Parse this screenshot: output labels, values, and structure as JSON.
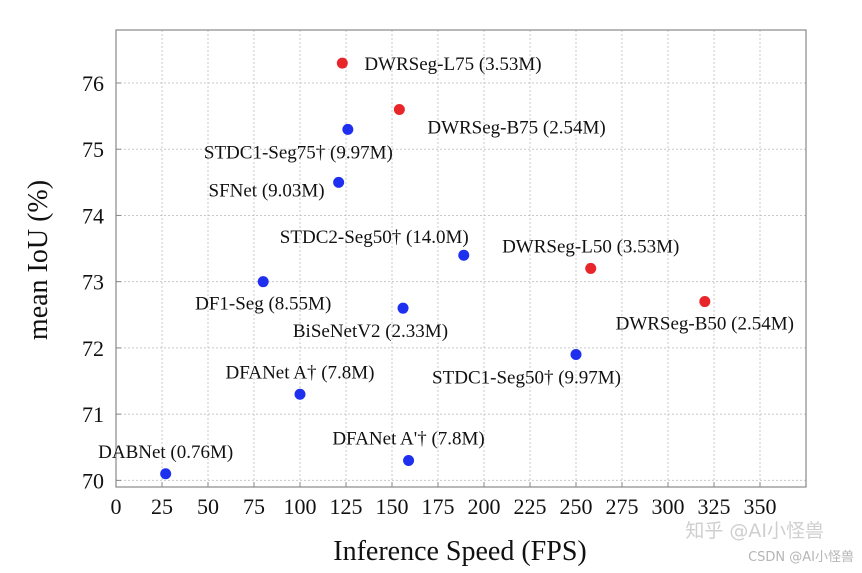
{
  "chart_data": {
    "type": "scatter",
    "title": "",
    "xlabel": "Inference Speed (FPS)",
    "ylabel": "mean IoU (%)",
    "xlim": [
      0,
      375
    ],
    "ylim": [
      69.9,
      76.8
    ],
    "xticks": [
      0,
      25,
      50,
      75,
      100,
      125,
      150,
      175,
      200,
      225,
      250,
      275,
      300,
      325,
      350
    ],
    "yticks": [
      70,
      71,
      72,
      73,
      74,
      75,
      76
    ],
    "grid": true,
    "colors": {
      "ours": "#e8262a",
      "others": "#1f2ff0"
    },
    "points": [
      {
        "label": "DWRSeg-L75 (3.53M)",
        "x": 123,
        "y": 76.3,
        "group": "ours",
        "anchor": "right"
      },
      {
        "label": "DWRSeg-B75 (2.54M)",
        "x": 154,
        "y": 75.6,
        "group": "ours",
        "anchor": "below-right"
      },
      {
        "label": "STDC1-Seg75† (9.97M)",
        "x": 126,
        "y": 75.3,
        "group": "others",
        "anchor": "below-left"
      },
      {
        "label": "SFNet (9.03M)",
        "x": 121,
        "y": 74.5,
        "group": "others",
        "anchor": "left"
      },
      {
        "label": "STDC2-Seg50† (14.0M)",
        "x": 189,
        "y": 73.4,
        "group": "others",
        "anchor": "above-left"
      },
      {
        "label": "DWRSeg-L50 (3.53M)",
        "x": 258,
        "y": 73.2,
        "group": "ours",
        "anchor": "above"
      },
      {
        "label": "DF1-Seg (8.55M)",
        "x": 80,
        "y": 73.0,
        "group": "others",
        "anchor": "below"
      },
      {
        "label": "DWRSeg-B50 (2.54M)",
        "x": 320,
        "y": 72.7,
        "group": "ours",
        "anchor": "below"
      },
      {
        "label": "BiSeNetV2 (2.33M)",
        "x": 156,
        "y": 72.6,
        "group": "others",
        "anchor": "below-left"
      },
      {
        "label": "STDC1-Seg50† (9.97M)",
        "x": 250,
        "y": 71.9,
        "group": "others",
        "anchor": "below-left"
      },
      {
        "label": "DFANet A† (7.8M)",
        "x": 100,
        "y": 71.3,
        "group": "others",
        "anchor": "above"
      },
      {
        "label": "DFANet A'† (7.8M)",
        "x": 159,
        "y": 70.3,
        "group": "others",
        "anchor": "above"
      },
      {
        "label": "DABNet (0.76M)",
        "x": 27,
        "y": 70.1,
        "group": "others",
        "anchor": "above"
      }
    ]
  },
  "watermark": {
    "zhihu": "知乎 @AI小怪兽",
    "csdn": "CSDN @AI小怪兽"
  }
}
